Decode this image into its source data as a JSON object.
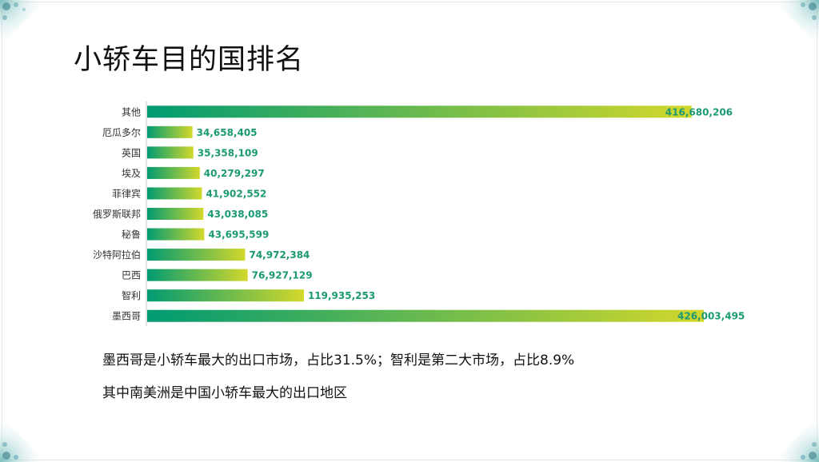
{
  "slide": {
    "title": "小轿车目的国排名",
    "notes": [
      "墨西哥是小轿车最大的出口市场，占比31.5%；智利是第二大市场，占比8.9%",
      "其中南美洲是中国小轿车最大的出口地区"
    ]
  },
  "colors": {
    "bar_start": "#009b72",
    "bar_end": "#d3d82b",
    "label": "#1a9973",
    "axis": "#c9c9c9"
  },
  "chart_data": {
    "type": "bar",
    "orientation": "horizontal",
    "categories": [
      "其他",
      "厄瓜多尔",
      "英国",
      "埃及",
      "菲律宾",
      "俄罗斯联邦",
      "秘鲁",
      "沙特阿拉伯",
      "巴西",
      "智利",
      "墨西哥"
    ],
    "values": [
      416680206,
      34658405,
      35358109,
      40279297,
      41902552,
      43038085,
      43695599,
      74972384,
      76927129,
      119935253,
      426003495
    ],
    "value_labels": [
      "416,680,206",
      "34,658,405",
      "35,358,109",
      "40,279,297",
      "41,902,552",
      "43,038,085",
      "43,695,599",
      "74,972,384",
      "76,927,129",
      "119,935,253",
      "426,003,495"
    ],
    "xlim": [
      0,
      426003495
    ],
    "title": "",
    "xlabel": "",
    "ylabel": "",
    "grid": false,
    "legend": "none"
  }
}
